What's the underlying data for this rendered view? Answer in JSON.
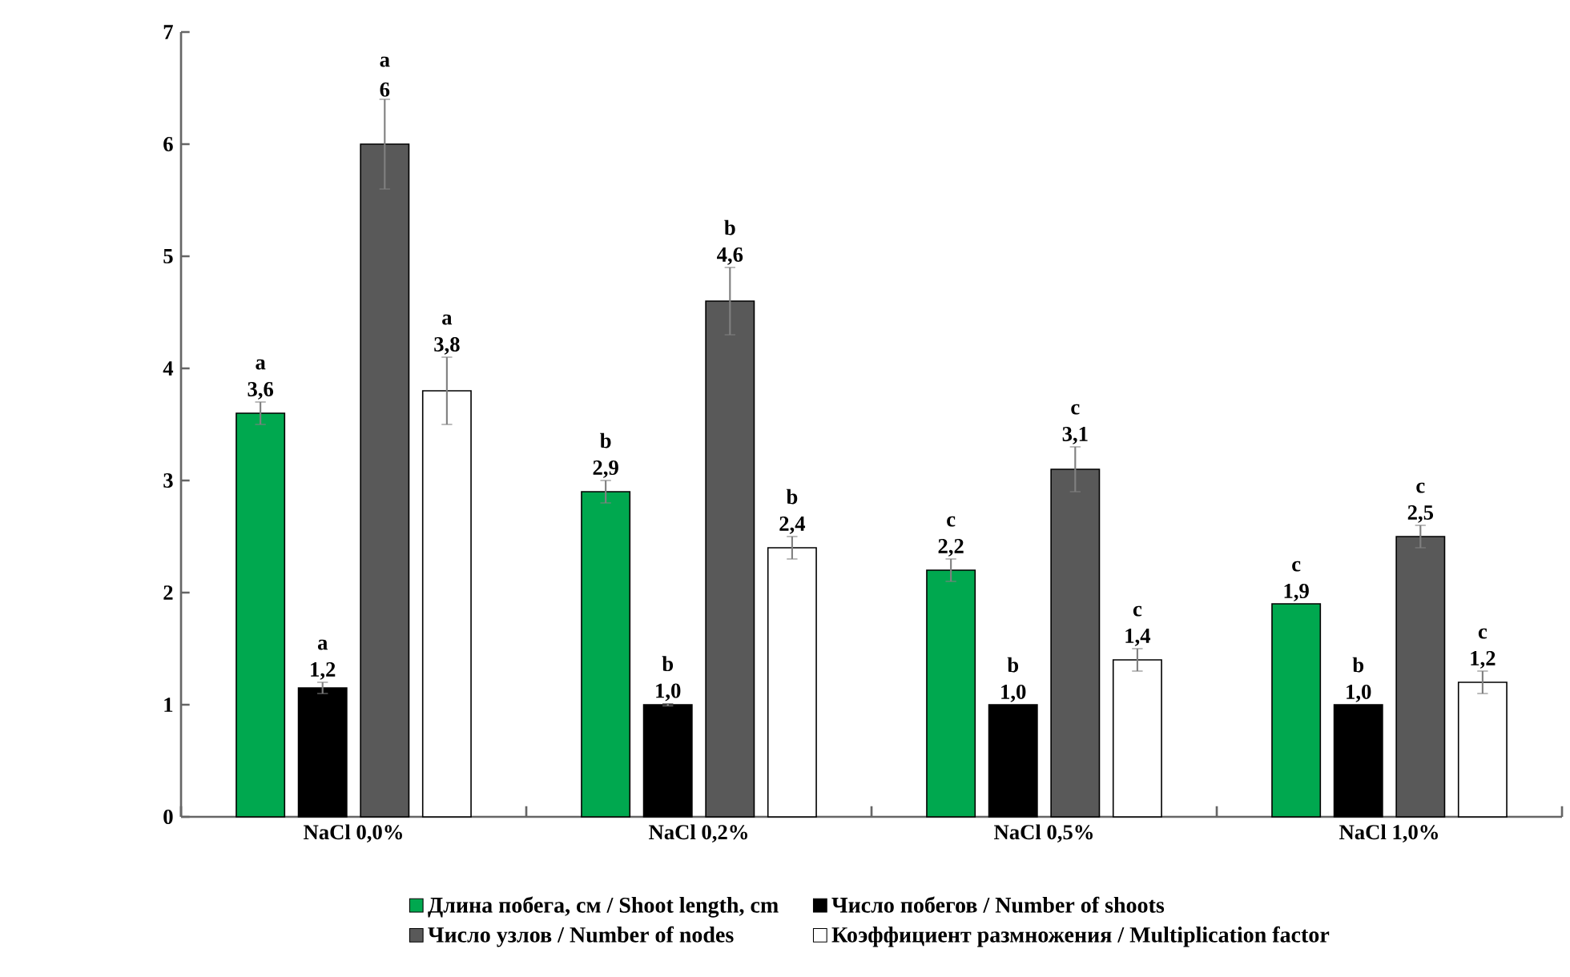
{
  "chart_data": {
    "type": "bar",
    "categories": [
      "NaCl 0,0%",
      "NaCl 0,2%",
      "NaCl 0,5%",
      "NaCl 1,0%"
    ],
    "series": [
      {
        "name": "Длина побега, см / Shoot length, cm",
        "color": "#00a84f",
        "values": [
          3.6,
          2.9,
          2.2,
          1.9
        ],
        "errors": [
          0.1,
          0.1,
          0.1,
          null
        ],
        "value_labels": [
          "3,6",
          "2,9",
          "2,2",
          "1,9"
        ]
      },
      {
        "name": "Число побегов / Number of shoots",
        "color": "#000000",
        "values": [
          1.15,
          1.0,
          1.0,
          1.0
        ],
        "errors": [
          0.05,
          0.01,
          null,
          null
        ],
        "value_labels": [
          "1,2",
          "1,0",
          "1,0",
          "1,0"
        ]
      },
      {
        "name": "Число узлов / Number of nodes",
        "color": "#595959",
        "values": [
          6,
          4.6,
          3.1,
          2.5
        ],
        "errors": [
          0.4,
          0.3,
          0.2,
          0.1
        ],
        "value_labels": [
          "6",
          "4,6",
          "3,1",
          "2,5"
        ]
      },
      {
        "name": "Коэффициент размножения / Multiplication factor",
        "color": "#ffffff",
        "values": [
          3.8,
          2.4,
          1.4,
          1.2
        ],
        "errors": [
          0.3,
          0.1,
          0.1,
          0.1
        ],
        "value_labels": [
          "3,8",
          "2,4",
          "1,4",
          "1,2"
        ]
      }
    ],
    "ylim": [
      0,
      7
    ],
    "yticks": [
      0,
      1,
      2,
      3,
      4,
      5,
      6,
      7
    ],
    "grid": false,
    "legend": "bottom",
    "annotations": [
      "a",
      "a",
      "a",
      "a",
      "b",
      "b",
      "b",
      "b",
      "c",
      "b",
      "c",
      "c",
      "c",
      "b",
      "c",
      "c"
    ]
  }
}
